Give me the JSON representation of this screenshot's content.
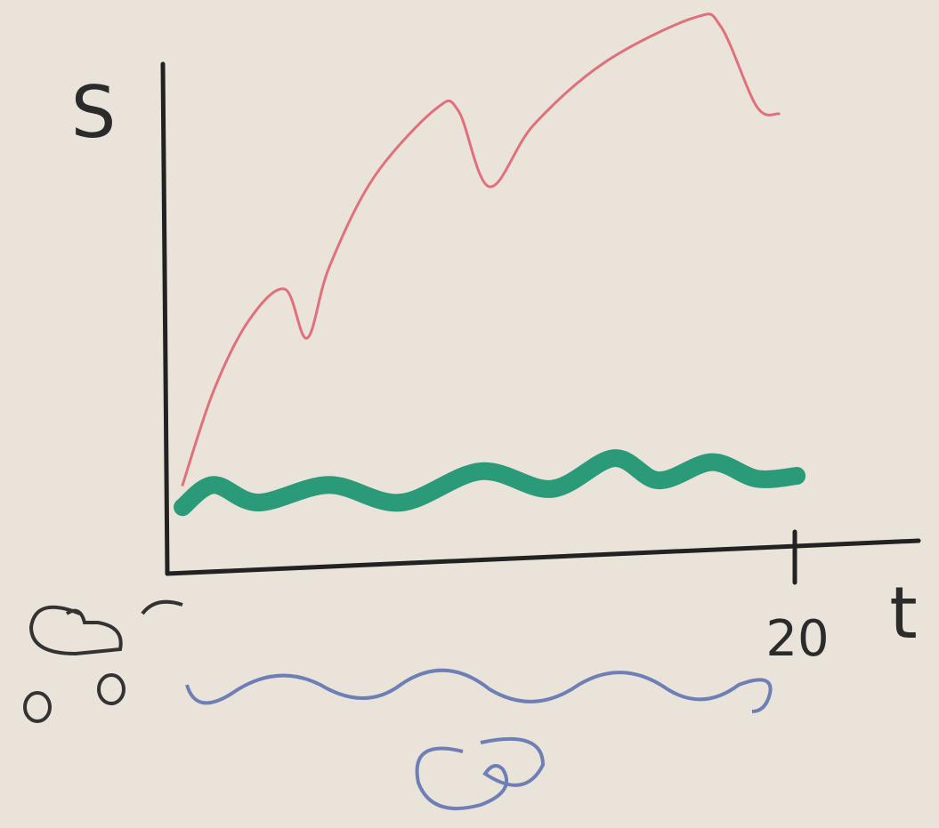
{
  "chart_data": {
    "type": "line",
    "x_label": "t",
    "y_label": "S",
    "xlim": [
      0,
      24
    ],
    "xticks": [
      20
    ],
    "ylim": [
      0,
      100
    ],
    "series": [
      {
        "color": "#e0707c",
        "width": 3,
        "x": [
          0.43,
          1.42,
          2.56,
          3.7,
          4.41,
          5.12,
          6.54,
          8.53,
          9.25,
          10.24,
          11.66,
          13.94,
          16.79,
          17.64,
          18.78,
          19.49
        ],
        "values": [
          14.8,
          31.3,
          43.8,
          49.2,
          40.6,
          53.1,
          68.8,
          80.9,
          80.5,
          67.2,
          78.1,
          89.1,
          96.9,
          95.3,
          81.3,
          80.0
        ]
      },
      {
        "color": "#2a9a78",
        "width": 20,
        "x": [
          0.43,
          1.42,
          2.85,
          5.12,
          7.4,
          9.96,
          12.23,
          14.22,
          15.65,
          17.35,
          18.78,
          20.06
        ],
        "values": [
          10.9,
          14.8,
          11.7,
          14.8,
          11.7,
          17.2,
          14.1,
          19.5,
          15.6,
          18.8,
          15.9,
          16.4
        ]
      }
    ]
  }
}
